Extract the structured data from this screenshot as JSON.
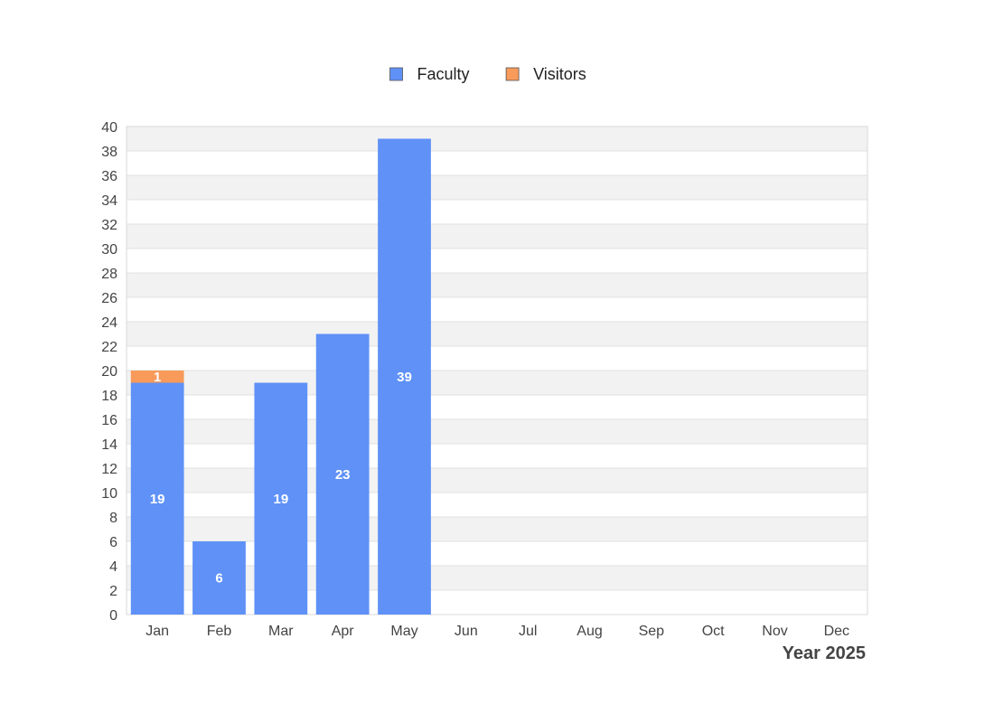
{
  "chart_data": {
    "type": "bar",
    "stacked": true,
    "categories": [
      "Jan",
      "Feb",
      "Mar",
      "Apr",
      "May",
      "Jun",
      "Jul",
      "Aug",
      "Sep",
      "Oct",
      "Nov",
      "Dec"
    ],
    "series": [
      {
        "name": "Faculty",
        "color": "#5f91f7",
        "values": [
          19,
          6,
          19,
          23,
          39,
          0,
          0,
          0,
          0,
          0,
          0,
          0
        ]
      },
      {
        "name": "Visitors",
        "color": "#f79a5a",
        "values": [
          1,
          0,
          0,
          0,
          0,
          0,
          0,
          0,
          0,
          0,
          0,
          0
        ]
      }
    ],
    "xlabel": "Year 2025",
    "ylabel": "",
    "ylim": [
      0,
      40
    ],
    "ytick_step": 2,
    "grid": true,
    "grid_style": "alternating-bands",
    "legend_position": "top-center"
  }
}
